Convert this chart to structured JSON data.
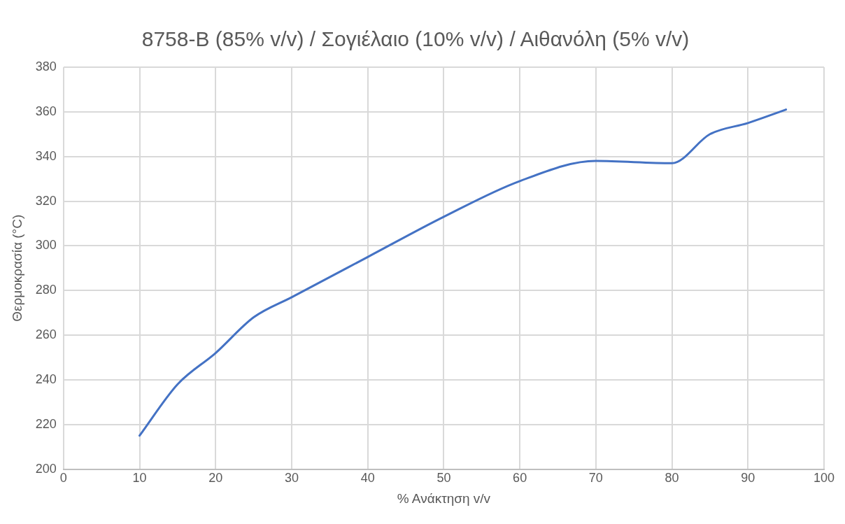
{
  "chart_data": {
    "type": "line",
    "title": "8758-B (85% v/v) / Σογιέλαιο (10% v/v) / Αιθανόλη (5% v/v)",
    "xlabel": "% Ανάκτηση v/v",
    "ylabel": "Θερμοκρασία (°C)",
    "x": [
      10,
      15,
      20,
      25,
      30,
      40,
      50,
      60,
      70,
      80,
      85,
      90,
      95
    ],
    "series": [
      {
        "color": "#4472c4",
        "values": [
          215,
          238,
          252,
          268,
          277,
          295,
          313,
          329,
          338,
          337,
          350,
          355,
          361
        ]
      }
    ],
    "xlim": [
      0,
      100
    ],
    "xticks": [
      0,
      10,
      20,
      30,
      40,
      50,
      60,
      70,
      80,
      90,
      100
    ],
    "ylim": [
      200,
      380
    ],
    "yticks": [
      200,
      220,
      240,
      260,
      280,
      300,
      320,
      340,
      360,
      380
    ],
    "grid": true,
    "legend": false,
    "marker": "none",
    "line_style": "solid"
  }
}
